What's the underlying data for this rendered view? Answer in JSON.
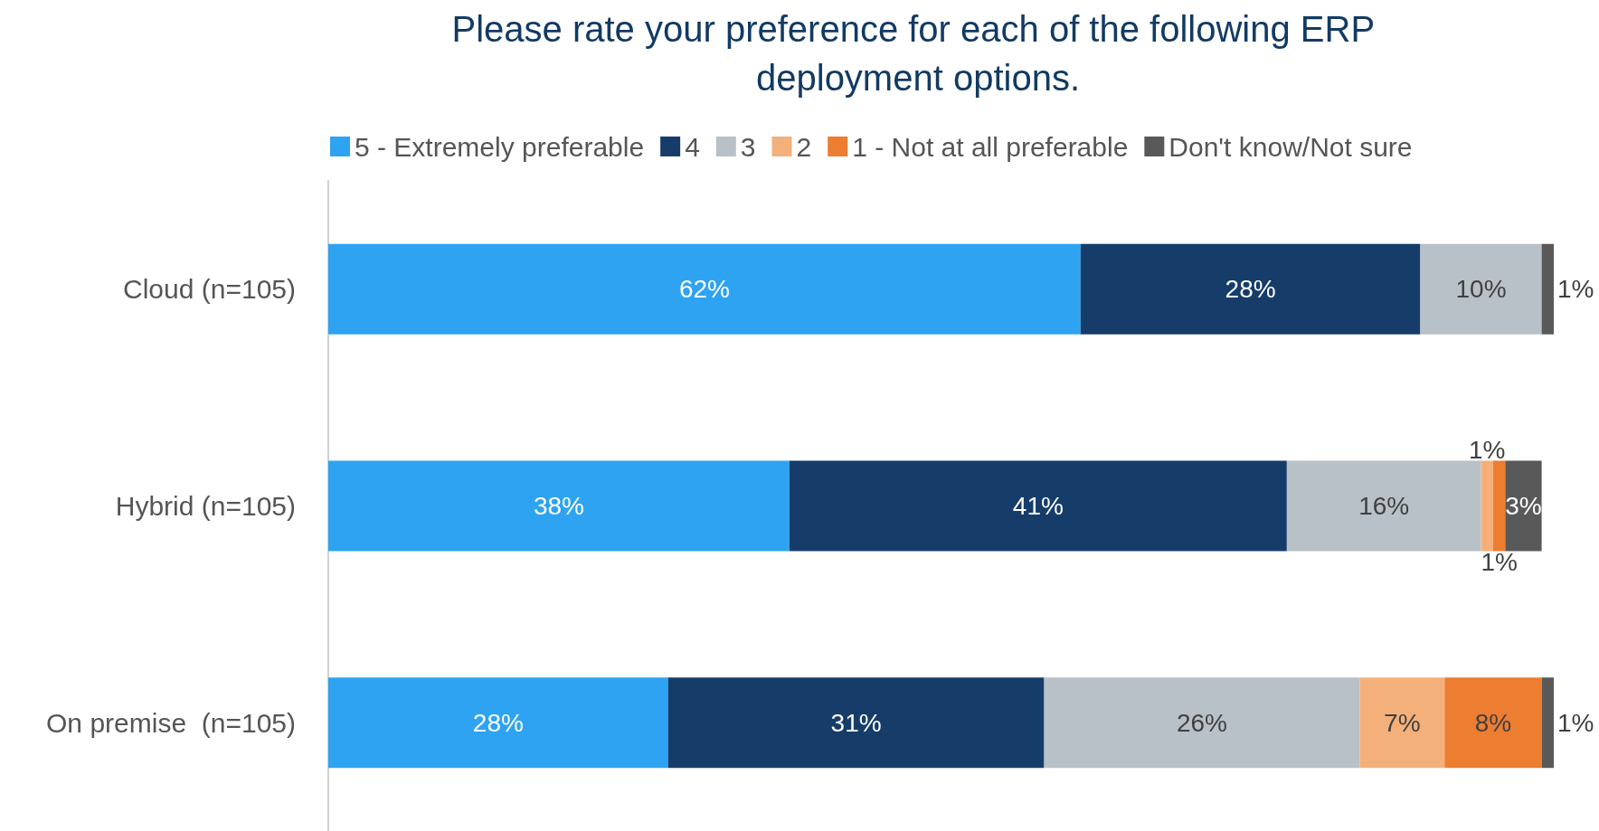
{
  "chart_data": {
    "type": "bar",
    "title": "Please rate your preference for each of the following ERP deployment options.",
    "orientation": "horizontal",
    "stacked": true,
    "legend": "top",
    "categories": [
      "Cloud (n=105)",
      "Hybrid (n=105)",
      "On premise  (n=105)"
    ],
    "series": [
      {
        "name": "5 - Extremely preferable",
        "color": "#2ea3f2",
        "values": [
          62,
          38,
          28
        ],
        "value_labels": [
          "62%",
          "38%",
          "28%"
        ]
      },
      {
        "name": "4",
        "color": "#163c6a",
        "values": [
          28,
          41,
          31
        ],
        "value_labels": [
          "28%",
          "41%",
          "31%"
        ]
      },
      {
        "name": "3",
        "color": "#b8c1c7",
        "values": [
          10,
          16,
          26
        ],
        "value_labels": [
          "10%",
          "16%",
          "26%"
        ]
      },
      {
        "name": "2",
        "color": "#f4b07a",
        "values": [
          null,
          1,
          7
        ],
        "value_labels": [
          null,
          "1%",
          "7%"
        ]
      },
      {
        "name": "1 - Not at all preferable",
        "color": "#ed7d31",
        "values": [
          null,
          1,
          8
        ],
        "value_labels": [
          null,
          "1%",
          "8%"
        ]
      },
      {
        "name": "Don't know/Not sure",
        "color": "#595959",
        "values": [
          1,
          3,
          1
        ],
        "value_labels": [
          "1%",
          "3%",
          "1%"
        ]
      }
    ]
  }
}
